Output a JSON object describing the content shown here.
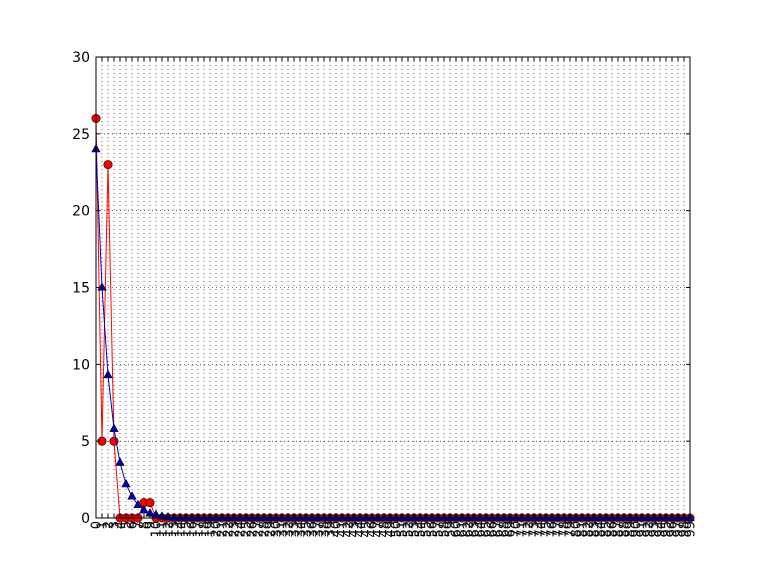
{
  "chart_data": {
    "type": "line",
    "title": "",
    "xlabel": "",
    "ylabel": "",
    "xlim": [
      0,
      99
    ],
    "ylim": [
      0,
      30
    ],
    "yticks": [
      0,
      5,
      10,
      15,
      20,
      25,
      30
    ],
    "xticks": [
      0,
      1,
      2,
      3,
      4,
      5,
      6,
      7,
      8,
      9,
      10,
      11,
      12,
      13,
      14,
      15,
      16,
      17,
      18,
      19,
      20,
      21,
      22,
      23,
      24,
      25,
      26,
      27,
      28,
      29,
      30,
      31,
      32,
      33,
      34,
      35,
      36,
      37,
      38,
      39,
      40,
      41,
      42,
      43,
      44,
      45,
      46,
      47,
      48,
      49,
      50,
      51,
      52,
      53,
      54,
      55,
      56,
      57,
      58,
      59,
      60,
      61,
      62,
      63,
      64,
      65,
      66,
      67,
      68,
      69,
      70,
      71,
      72,
      73,
      74,
      75,
      76,
      77,
      78,
      79,
      80,
      81,
      82,
      83,
      84,
      85,
      86,
      87,
      88,
      89,
      90,
      91,
      92,
      93,
      94,
      95,
      96,
      97,
      98,
      99
    ],
    "grid": true,
    "x": [
      0,
      1,
      2,
      3,
      4,
      5,
      6,
      7,
      8,
      9,
      10,
      11,
      12,
      13,
      14,
      15,
      16,
      17,
      18,
      19,
      20,
      21,
      22,
      23,
      24,
      25,
      26,
      27,
      28,
      29,
      30,
      31,
      32,
      33,
      34,
      35,
      36,
      37,
      38,
      39,
      40,
      41,
      42,
      43,
      44,
      45,
      46,
      47,
      48,
      49,
      50,
      51,
      52,
      53,
      54,
      55,
      56,
      57,
      58,
      59,
      60,
      61,
      62,
      63,
      64,
      65,
      66,
      67,
      68,
      69,
      70,
      71,
      72,
      73,
      74,
      75,
      76,
      77,
      78,
      79,
      80,
      81,
      82,
      83,
      84,
      85,
      86,
      87,
      88,
      89,
      90,
      91,
      92,
      93,
      94,
      95,
      96,
      97,
      98,
      99
    ],
    "series": [
      {
        "color": "#ff0000",
        "marker": "circle",
        "values": [
          26,
          5,
          23,
          5,
          0,
          0,
          0,
          0,
          1,
          1,
          0,
          0,
          0,
          0,
          0,
          0,
          0,
          0,
          0,
          0,
          0,
          0,
          0,
          0,
          0,
          0,
          0,
          0,
          0,
          0,
          0,
          0,
          0,
          0,
          0,
          0,
          0,
          0,
          0,
          0,
          0,
          0,
          0,
          0,
          0,
          0,
          0,
          0,
          0,
          0,
          0,
          0,
          0,
          0,
          0,
          0,
          0,
          0,
          0,
          0,
          0,
          0,
          0,
          0,
          0,
          0,
          0,
          0,
          0,
          0,
          0,
          0,
          0,
          0,
          0,
          0,
          0,
          0,
          0,
          0,
          0,
          0,
          0,
          0,
          0,
          0,
          0,
          0,
          0,
          0,
          0,
          0,
          0,
          0,
          0,
          0,
          0,
          0,
          0,
          0
        ]
      },
      {
        "color": "#0000bf",
        "marker": "triangle",
        "values": [
          24,
          15,
          9.3,
          5.8,
          3.6,
          2.2,
          1.4,
          0.85,
          0.5,
          0.3,
          0.2,
          0.1,
          0.05,
          0,
          0,
          0,
          0,
          0,
          0,
          0,
          0,
          0,
          0,
          0,
          0,
          0,
          0,
          0,
          0,
          0,
          0,
          0,
          0,
          0,
          0,
          0,
          0,
          0,
          0,
          0,
          0,
          0,
          0,
          0,
          0,
          0,
          0,
          0,
          0,
          0,
          0,
          0,
          0,
          0,
          0,
          0,
          0,
          0,
          0,
          0,
          0,
          0,
          0,
          0,
          0,
          0,
          0,
          0,
          0,
          0,
          0,
          0,
          0,
          0,
          0,
          0,
          0,
          0,
          0,
          0,
          0,
          0,
          0,
          0,
          0,
          0,
          0,
          0,
          0,
          0,
          0,
          0,
          0,
          0,
          0,
          0,
          0,
          0,
          0,
          0
        ]
      }
    ]
  }
}
